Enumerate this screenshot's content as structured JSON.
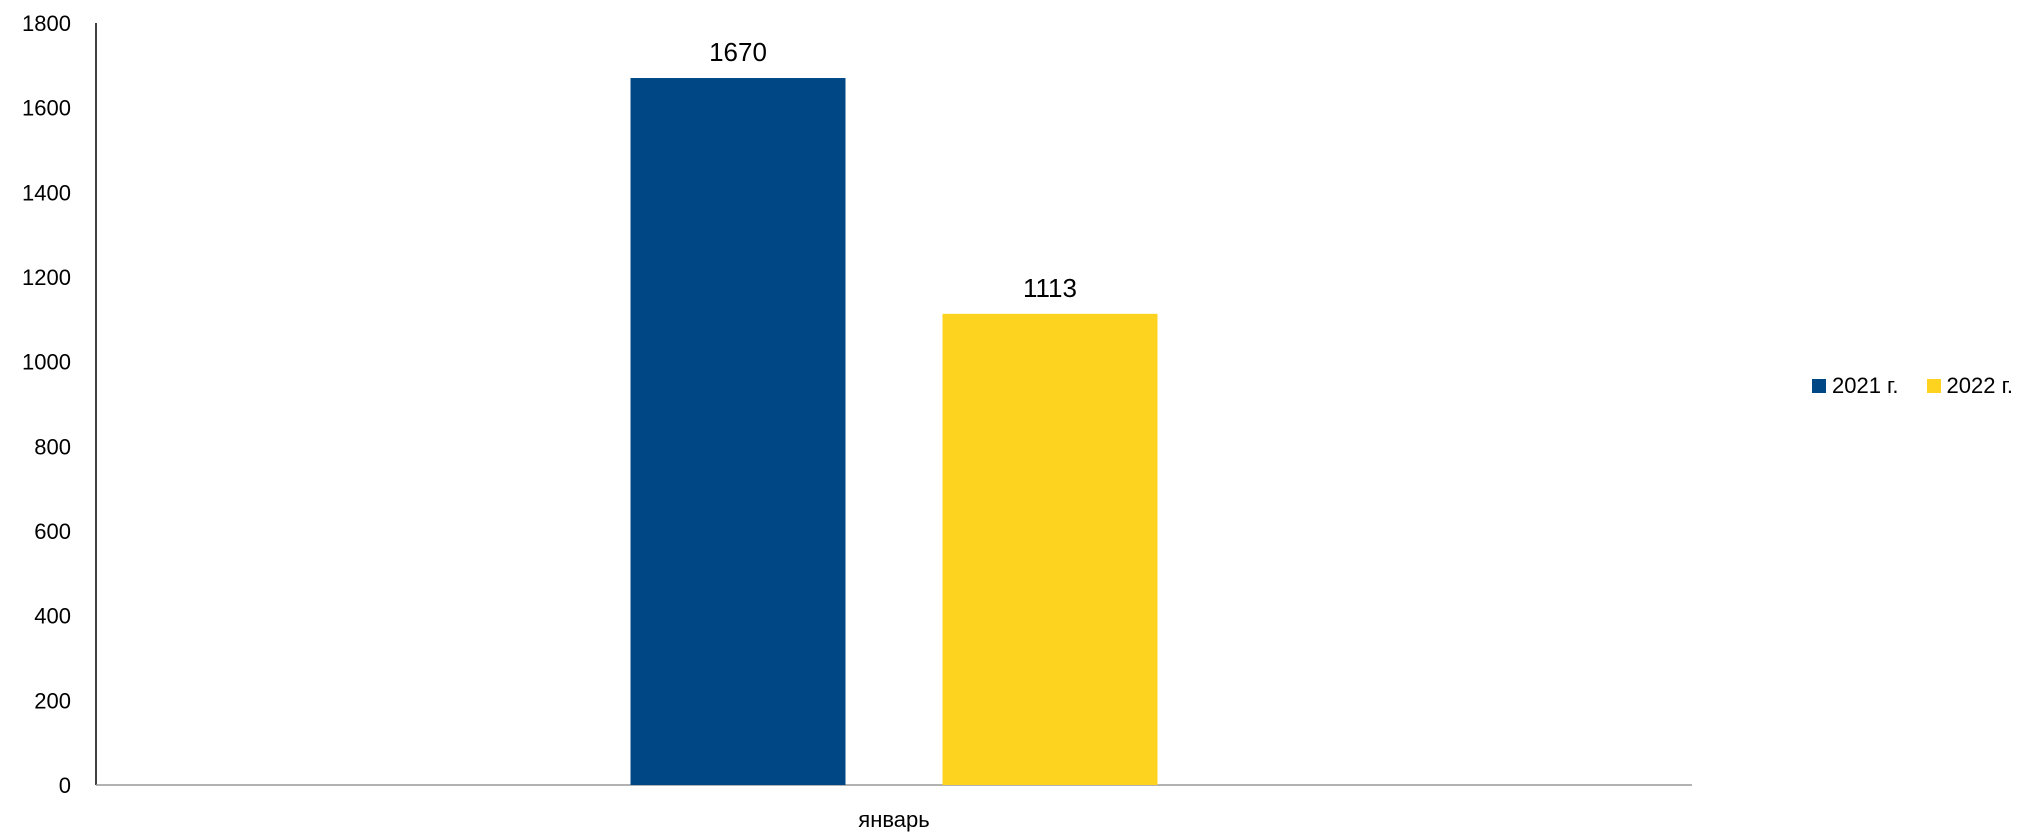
{
  "chart_data": {
    "type": "bar",
    "categories": [
      "январь"
    ],
    "series": [
      {
        "name": "2021 г.",
        "values": [
          1670
        ],
        "color": "#004785"
      },
      {
        "name": "2022 г.",
        "values": [
          1113
        ],
        "color": "#FDD31F"
      }
    ],
    "data_labels": [
      "1670",
      "1113"
    ],
    "y_ticks": [
      "0",
      "200",
      "400",
      "600",
      "800",
      "1000",
      "1200",
      "1400",
      "1600",
      "1800"
    ],
    "ylim": [
      0,
      1800
    ],
    "title": "",
    "xlabel": "",
    "ylabel": "",
    "grid": false,
    "legend_position": "right"
  }
}
